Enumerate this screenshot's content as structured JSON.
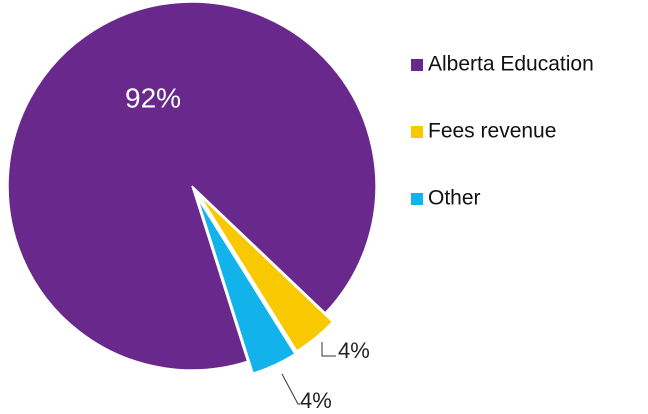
{
  "chart_data": {
    "type": "pie",
    "categories": [
      "Alberta Education",
      "Fees revenue",
      "Other"
    ],
    "values": [
      92,
      4,
      4
    ],
    "value_labels": [
      "92%",
      "4%",
      "4%"
    ],
    "colors": [
      "#68288c",
      "#f8c800",
      "#12b2ea"
    ],
    "legend": "right"
  }
}
